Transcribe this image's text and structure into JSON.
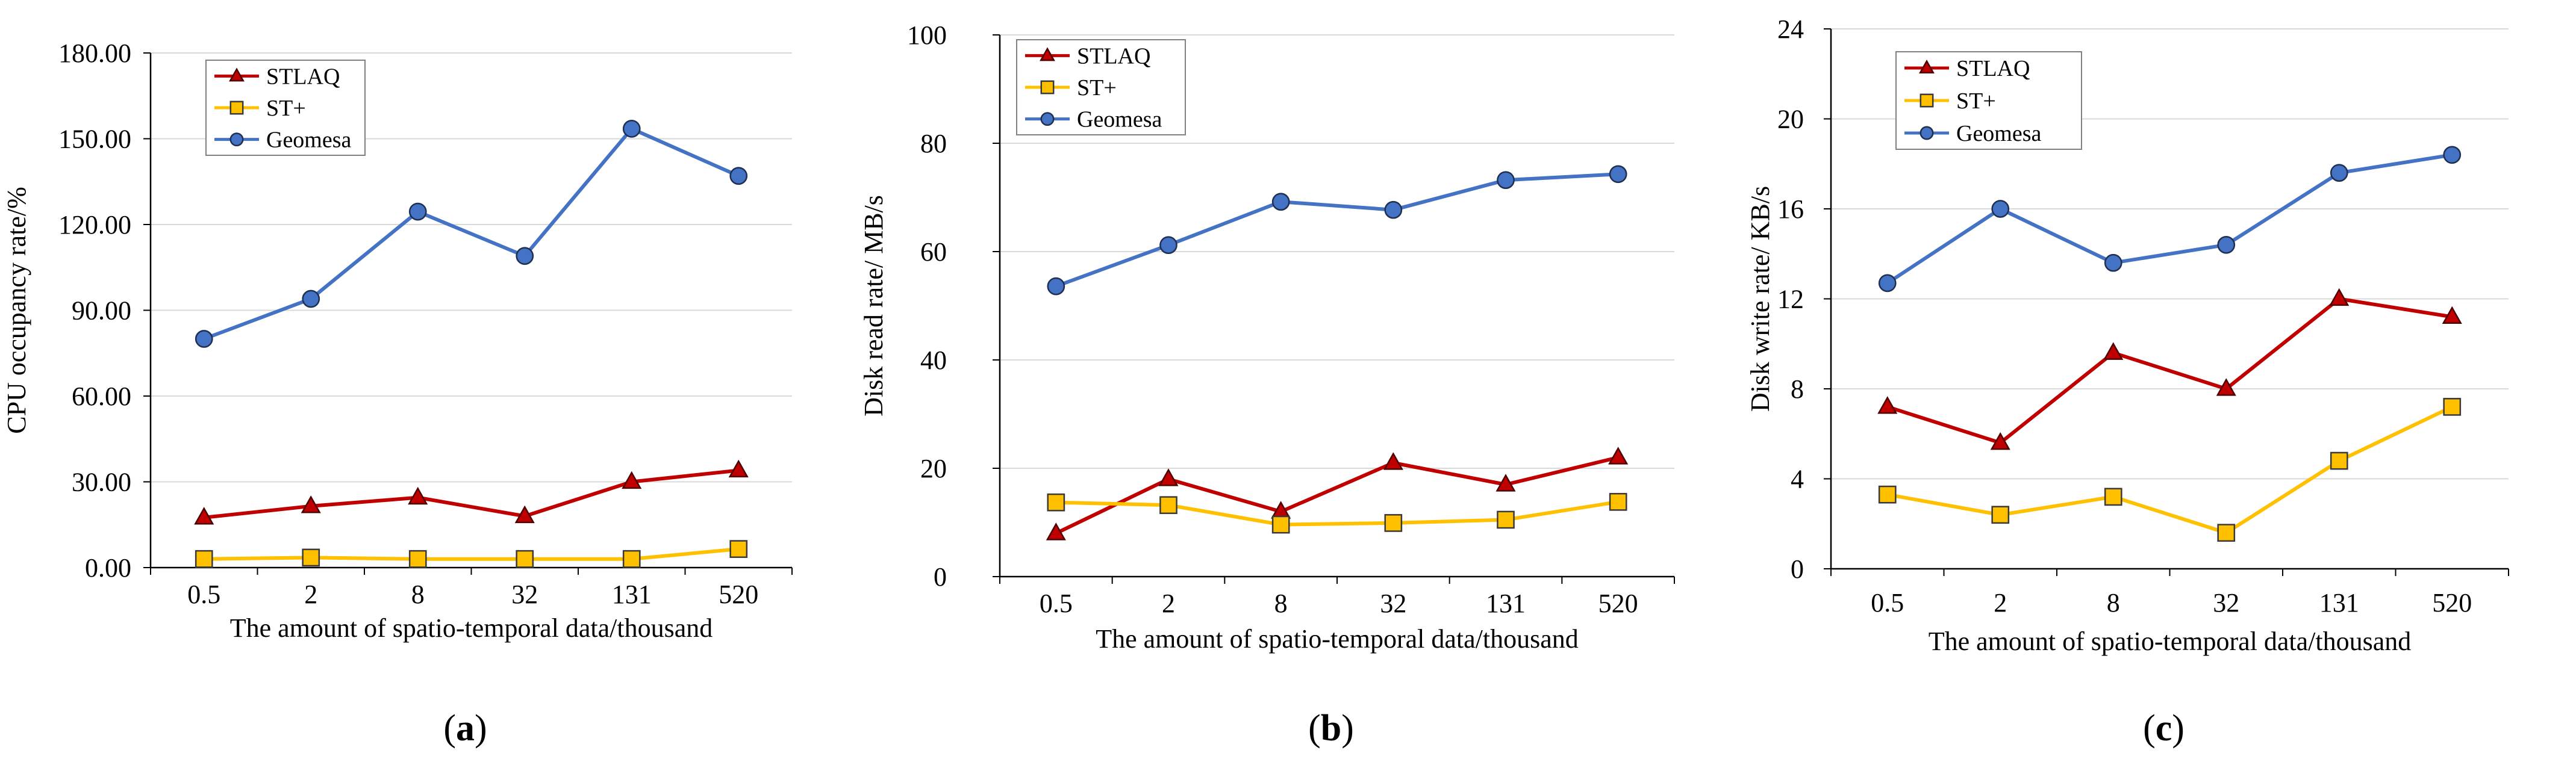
{
  "figure": {
    "colors": {
      "STLAQ": "#c00000",
      "ST+": "#ffc000",
      "Geomesa": "#4472c4"
    },
    "marker_fill": {
      "STLAQ": "#c00000",
      "ST+": "#ffc000",
      "Geomesa": "#4472c4"
    }
  },
  "chart_data": [
    {
      "type": "line",
      "panel_label": "(a)",
      "panel_letter": "a",
      "xlabel": "The amount of spatio-temporal data/thousand",
      "ylabel": "CPU occupancy rate/%",
      "categories": [
        "0.5",
        "2",
        "8",
        "32",
        "131",
        "520"
      ],
      "ylim": [
        0,
        180
      ],
      "yticks": [
        0,
        30,
        60,
        90,
        120,
        150,
        180
      ],
      "ytick_labels": [
        "0.00",
        "30.00",
        "60.00",
        "90.00",
        "120.00",
        "150.00",
        "180.00"
      ],
      "grid": true,
      "legend": [
        "STLAQ",
        "ST+",
        "Geomesa"
      ],
      "series": [
        {
          "name": "STLAQ",
          "marker": "triangle",
          "values": [
            17.5,
            21.5,
            24.5,
            18,
            30,
            34
          ]
        },
        {
          "name": "ST+",
          "marker": "square",
          "values": [
            3,
            3.5,
            3,
            3,
            3,
            6.5
          ]
        },
        {
          "name": "Geomesa",
          "marker": "circle",
          "values": [
            80,
            94,
            124.5,
            109,
            153.5,
            137
          ]
        }
      ]
    },
    {
      "type": "line",
      "panel_label": "(b)",
      "panel_letter": "b",
      "xlabel": "The amount of spatio-temporal data/thousand",
      "ylabel": "Disk read rate/ MB/s",
      "categories": [
        "0.5",
        "2",
        "8",
        "32",
        "131",
        "520"
      ],
      "ylim": [
        0,
        100
      ],
      "yticks": [
        0,
        20,
        40,
        60,
        80,
        100
      ],
      "ytick_labels": [
        "0",
        "20",
        "40",
        "60",
        "80",
        "100"
      ],
      "grid": true,
      "legend": [
        "STLAQ",
        "ST+",
        "Geomesa"
      ],
      "series": [
        {
          "name": "STLAQ",
          "marker": "triangle",
          "values": [
            8,
            18,
            12,
            21,
            17,
            22
          ]
        },
        {
          "name": "ST+",
          "marker": "square",
          "values": [
            13.7,
            13.2,
            9.6,
            9.9,
            10.5,
            13.8
          ]
        },
        {
          "name": "Geomesa",
          "marker": "circle",
          "values": [
            53.6,
            61.2,
            69.2,
            67.7,
            73.2,
            74.3
          ]
        }
      ]
    },
    {
      "type": "line",
      "panel_label": "(c)",
      "panel_letter": "c",
      "xlabel": "The amount of spatio-temporal data/thousand",
      "ylabel": "Disk write rate/ KB/s",
      "categories": [
        "0.5",
        "2",
        "8",
        "32",
        "131",
        "520"
      ],
      "ylim": [
        0,
        24
      ],
      "yticks": [
        0,
        4,
        8,
        12,
        16,
        20,
        24
      ],
      "ytick_labels": [
        "0",
        "4",
        "8",
        "12",
        "16",
        "20",
        "24"
      ],
      "grid": true,
      "legend": [
        "STLAQ",
        "ST+",
        "Geomesa"
      ],
      "series": [
        {
          "name": "STLAQ",
          "marker": "triangle",
          "values": [
            7.2,
            5.6,
            9.6,
            8,
            12,
            11.2
          ]
        },
        {
          "name": "ST+",
          "marker": "square",
          "values": [
            3.3,
            2.4,
            3.2,
            1.6,
            4.8,
            7.2
          ]
        },
        {
          "name": "Geomesa",
          "marker": "circle",
          "values": [
            12.7,
            16,
            13.6,
            14.4,
            17.6,
            18.4
          ]
        }
      ]
    }
  ]
}
